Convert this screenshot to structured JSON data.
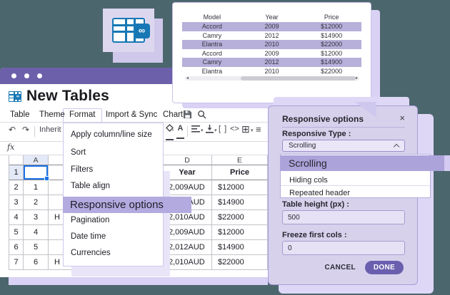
{
  "colors": {
    "background_teal": "#4C666D",
    "titlebar_purple": "#6C60AB",
    "lavender_card": "#D9D2F4",
    "panel_bg": "#D7D1EC",
    "highlight_purple": "#ACA3DA",
    "stripe_lavender": "#B7B0DA",
    "brand_blue": "#1778B5",
    "selection_blue": "#1A73E8",
    "done_button": "#6A5FAE"
  },
  "preview_table": {
    "columns": [
      "Model",
      "Year",
      "Price"
    ],
    "rows": [
      [
        "Accord",
        "2009",
        "$12000"
      ],
      [
        "Camry",
        "2012",
        "$14900"
      ],
      [
        "Elantra",
        "2010",
        "$22000"
      ],
      [
        "Accord",
        "2009",
        "$12000"
      ],
      [
        "Camry",
        "2012",
        "$14900"
      ],
      [
        "Elantra",
        "2010",
        "$22000"
      ]
    ]
  },
  "window": {
    "title": "New Tables",
    "menus": [
      "Table",
      "Theme",
      "Format",
      "Import & Sync",
      "Chart"
    ],
    "active_menu": "Format",
    "toolbar": {
      "font_value": "Inherit"
    },
    "formula_label": "fx",
    "format_menu": {
      "items": [
        "Apply column/line size",
        "Sort",
        "Filters",
        "Table align",
        "Responsive options",
        "Pagination",
        "Date time",
        "Currencies"
      ],
      "highlighted_item": "Responsive options"
    },
    "grid": {
      "col_letters": [
        "A",
        "",
        "",
        "D",
        "E"
      ],
      "rows": [
        {
          "num": "1",
          "cells": [
            "",
            "",
            "",
            "Year",
            "Price"
          ]
        },
        {
          "num": "2",
          "cells": [
            "1",
            "",
            "",
            "2,009AUD",
            "$12000"
          ]
        },
        {
          "num": "3",
          "cells": [
            "2",
            "",
            "",
            "2,012AUD",
            "$14900"
          ]
        },
        {
          "num": "4",
          "cells": [
            "3",
            "H",
            "",
            "2,010AUD",
            "$22000"
          ]
        },
        {
          "num": "5",
          "cells": [
            "4",
            "",
            "",
            "2,009AUD",
            "$12000"
          ]
        },
        {
          "num": "6",
          "cells": [
            "5",
            "",
            "",
            "2,012AUD",
            "$14900"
          ]
        },
        {
          "num": "7",
          "cells": [
            "6",
            "H",
            "",
            "2,010AUD",
            "$22000"
          ]
        }
      ]
    }
  },
  "panel": {
    "title": "Responsive options",
    "close_icon": "×",
    "type_label": "Responsive Type :",
    "type_value": "Scrolling",
    "options": [
      "Scrolling",
      "Hiding cols",
      "Repeated header"
    ],
    "selected_option": "Scrolling",
    "height_label": "Table height (px) :",
    "height_value": "500",
    "freeze_label": "Freeze first cols :",
    "freeze_value": "0",
    "cancel_label": "CANCEL",
    "done_label": "DONE"
  },
  "icons": {
    "undo": "↶",
    "redo": "↷",
    "infinity": "∞",
    "caret_down": "▾",
    "merge_cells": "[ ]",
    "code": "<>",
    "borders_grid": "⊞",
    "align_lines": "≡",
    "text_color": "A"
  }
}
